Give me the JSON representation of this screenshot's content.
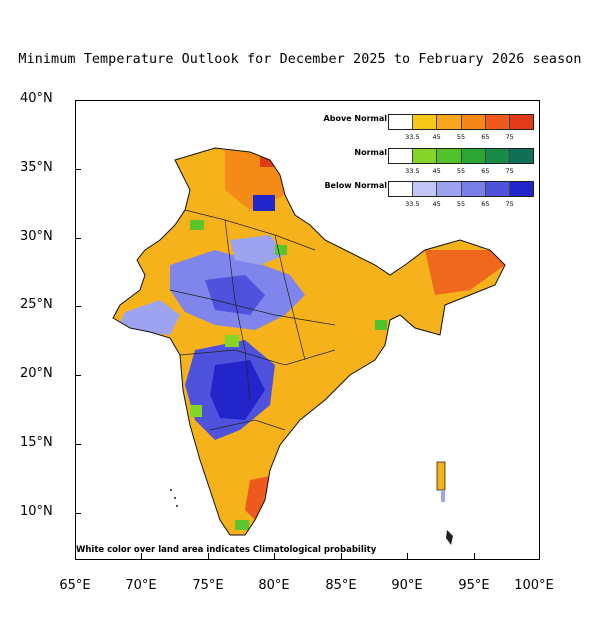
{
  "title": "Minimum Temperature Outlook for December 2025 to February 2026 season",
  "axes": {
    "y_labels": [
      "40°N",
      "35°N",
      "30°N",
      "25°N",
      "20°N",
      "15°N",
      "10°N"
    ],
    "x_labels": [
      "65°E",
      "70°E",
      "75°E",
      "80°E",
      "85°E",
      "90°E",
      "95°E",
      "100°E"
    ]
  },
  "note": "White color over land area indicates Climatological probability",
  "legend": [
    {
      "name": "Above Normal",
      "colors": [
        "#ffffff",
        "#f7c81a",
        "#f9a51c",
        "#f58617",
        "#ee5a1d",
        "#e33a19"
      ],
      "ticks": [
        "33.5",
        "45",
        "55",
        "65",
        "75"
      ]
    },
    {
      "name": "Normal",
      "colors": [
        "#ffffff",
        "#86d62a",
        "#50c22a",
        "#2ba534",
        "#19894a",
        "#0f6f57"
      ],
      "ticks": [
        "33.5",
        "45",
        "55",
        "65",
        "75"
      ]
    },
    {
      "name": "Below Normal",
      "colors": [
        "#ffffff",
        "#c2c7f7",
        "#9ea3f1",
        "#7a7ee8",
        "#4f52dd",
        "#2225c9"
      ],
      "ticks": [
        "33.5",
        "45",
        "55",
        "65",
        "75"
      ]
    }
  ],
  "colors": {
    "above": "#f6b21b",
    "above_strong": "#e85a1c",
    "normal": "#5cc52c",
    "below": "#7f85ea",
    "below_strong": "#2b33d3",
    "below_light": "#c2c7f7"
  }
}
